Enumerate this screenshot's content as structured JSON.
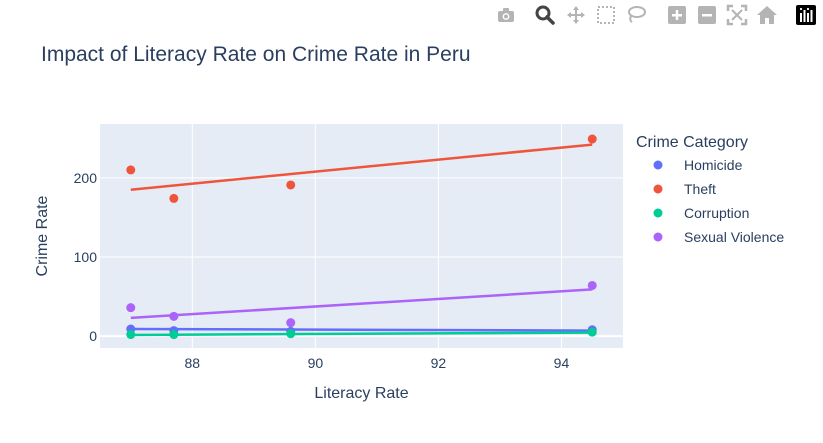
{
  "modebar": {
    "buttons": [
      "camera-icon",
      "zoom-icon",
      "pan-icon",
      "box-select-icon",
      "lasso-icon",
      "zoom-in-icon",
      "zoom-out-icon",
      "autoscale-icon",
      "reset-axes-icon",
      "plotly-logo-icon"
    ]
  },
  "chart_data": {
    "type": "scatter",
    "title": "Impact of Literacy Rate on Crime Rate in Peru",
    "xlabel": "Literacy Rate",
    "ylabel": "Crime Rate",
    "xlim": [
      86.5,
      95.0
    ],
    "ylim": [
      -15,
      268
    ],
    "x_ticks": [
      88,
      90,
      92,
      94
    ],
    "y_ticks": [
      0,
      100,
      200
    ],
    "x_tick_labels": [
      "88",
      "90",
      "92",
      "94"
    ],
    "y_tick_labels": [
      "0",
      "100",
      "200"
    ],
    "grid": true,
    "legend": {
      "title": "Crime Category",
      "placement": "right"
    },
    "series": [
      {
        "name": "Homicide",
        "color": "#636efa",
        "x": [
          87.0,
          87.7,
          89.6,
          94.5
        ],
        "y": [
          9,
          7,
          6,
          8
        ],
        "trendline": [
          [
            87.0,
            9.0
          ],
          [
            94.5,
            7.0
          ]
        ]
      },
      {
        "name": "Theft",
        "color": "#ef553b",
        "x": [
          87.0,
          87.7,
          89.6,
          94.5
        ],
        "y": [
          210,
          174,
          191,
          249
        ],
        "trendline": [
          [
            87.0,
            185.0
          ],
          [
            94.5,
            242.0
          ]
        ]
      },
      {
        "name": "Corruption",
        "color": "#00cc96",
        "x": [
          87.0,
          87.7,
          89.6,
          94.5
        ],
        "y": [
          2,
          2,
          3,
          5
        ],
        "trendline": [
          [
            87.0,
            1.5
          ],
          [
            94.5,
            4.5
          ]
        ]
      },
      {
        "name": "Sexual Violence",
        "color": "#ab63fa",
        "x": [
          87.0,
          87.7,
          89.6,
          94.5
        ],
        "y": [
          36,
          25,
          17,
          64
        ],
        "trendline": [
          [
            87.0,
            23.0
          ],
          [
            94.5,
            59.0
          ]
        ]
      }
    ]
  }
}
